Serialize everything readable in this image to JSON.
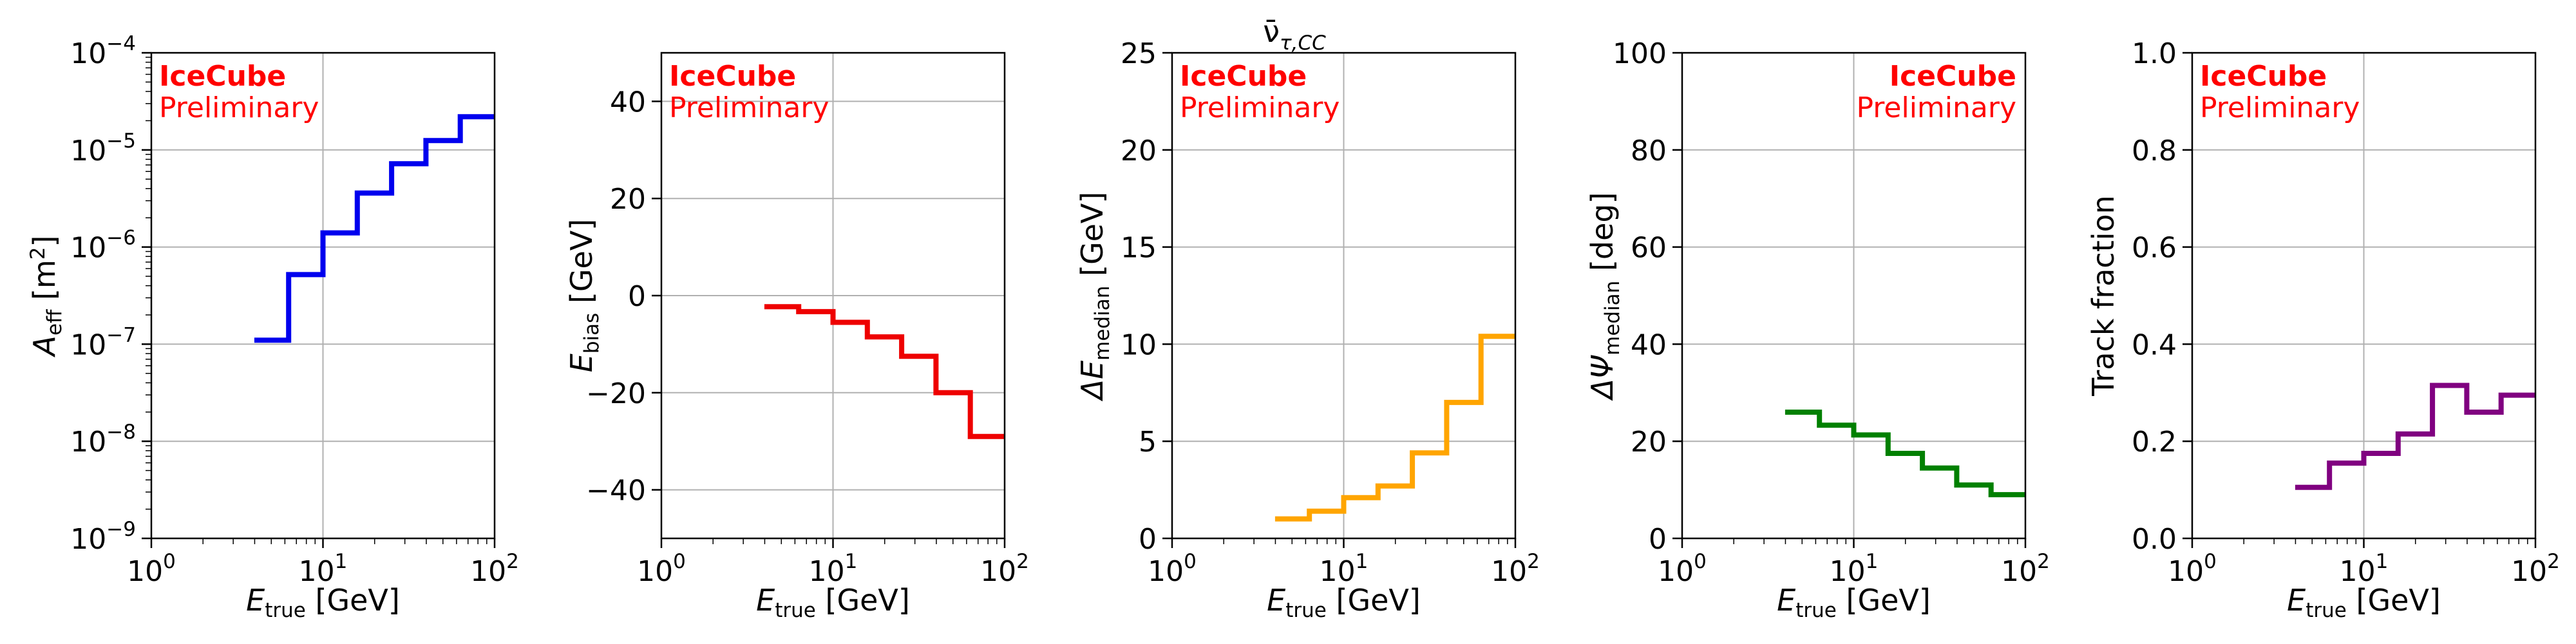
{
  "figure": {
    "suptitle": "ν̄τ,CC",
    "suptitle_main": "ν̄",
    "suptitle_sub": "τ,CC"
  },
  "watermark": {
    "line1": "IceCube",
    "line2": "Preliminary"
  },
  "chart_data": [
    {
      "id": "aeff",
      "type": "line",
      "drawstyle": "steps-post",
      "color": "#0000ee",
      "xscale": "log",
      "yscale": "log",
      "xlim": [
        1,
        100
      ],
      "ylim": [
        1e-09,
        0.0001
      ],
      "xlabel_main": "E",
      "xlabel_sub": "true",
      "xlabel_unit": " [GeV]",
      "ylabel_main": "A",
      "ylabel_sub": "eff",
      "ylabel_unit": " [m",
      "ylabel_sup": "2",
      "ylabel_close": "]",
      "xticks": [
        1,
        10,
        100
      ],
      "xtick_labels": [
        "10^0",
        "10^1",
        "10^2"
      ],
      "yticks": [
        1e-09,
        1e-08,
        1e-07,
        1e-06,
        1e-05,
        0.0001
      ],
      "ytick_labels": [
        "10^−9",
        "10^−8",
        "10^−7",
        "10^−6",
        "10^−5",
        "10^−4"
      ],
      "watermark_position": "top-left",
      "grid": true,
      "edges": [
        3.98,
        6.31,
        10.0,
        15.85,
        25.12,
        39.81,
        63.1,
        100.0
      ],
      "values": [
        1.1e-07,
        5.2e-07,
        1.4e-06,
        3.6e-06,
        7.2e-06,
        1.25e-05,
        2.2e-05
      ]
    },
    {
      "id": "ebias",
      "type": "line",
      "drawstyle": "steps-post",
      "color": "#ee0000",
      "xscale": "log",
      "yscale": "linear",
      "xlim": [
        1,
        100
      ],
      "ylim": [
        -50,
        50
      ],
      "xlabel_main": "E",
      "xlabel_sub": "true",
      "xlabel_unit": " [GeV]",
      "ylabel_main": "E",
      "ylabel_sub": "bias",
      "ylabel_unit": " [GeV]",
      "xticks": [
        1,
        10,
        100
      ],
      "xtick_labels": [
        "10^0",
        "10^1",
        "10^2"
      ],
      "yticks": [
        -40,
        -20,
        0,
        20,
        40
      ],
      "ytick_labels": [
        "−40",
        "−20",
        "0",
        "20",
        "40"
      ],
      "watermark_position": "top-left",
      "grid": true,
      "edges": [
        3.98,
        6.31,
        10.0,
        15.85,
        25.12,
        39.81,
        63.1,
        100.0
      ],
      "values": [
        -2.3,
        -3.3,
        -5.5,
        -8.5,
        -12.5,
        -20.0,
        -29.0
      ]
    },
    {
      "id": "dE",
      "type": "line",
      "drawstyle": "steps-post",
      "color": "#ffa500",
      "xscale": "log",
      "yscale": "linear",
      "xlim": [
        1,
        100
      ],
      "ylim": [
        0,
        25
      ],
      "xlabel_main": "E",
      "xlabel_sub": "true",
      "xlabel_unit": " [GeV]",
      "ylabel_main": "ΔE",
      "ylabel_sub": "median",
      "ylabel_unit": " [GeV]",
      "xticks": [
        1,
        10,
        100
      ],
      "xtick_labels": [
        "10^0",
        "10^1",
        "10^2"
      ],
      "yticks": [
        0,
        5,
        10,
        15,
        20,
        25
      ],
      "ytick_labels": [
        "0",
        "5",
        "10",
        "15",
        "20",
        "25"
      ],
      "watermark_position": "top-left",
      "grid": true,
      "edges": [
        3.98,
        6.31,
        10.0,
        15.85,
        25.12,
        39.81,
        63.1,
        100.0
      ],
      "values": [
        1.0,
        1.4,
        2.1,
        2.7,
        4.4,
        7.0,
        10.4
      ]
    },
    {
      "id": "dPsi",
      "type": "line",
      "drawstyle": "steps-post",
      "color": "#008000",
      "xscale": "log",
      "yscale": "linear",
      "xlim": [
        1,
        100
      ],
      "ylim": [
        0,
        100
      ],
      "xlabel_main": "E",
      "xlabel_sub": "true",
      "xlabel_unit": " [GeV]",
      "ylabel_main": "ΔΨ",
      "ylabel_sub": "median",
      "ylabel_unit": " [deg]",
      "xticks": [
        1,
        10,
        100
      ],
      "xtick_labels": [
        "10^0",
        "10^1",
        "10^2"
      ],
      "yticks": [
        0,
        20,
        40,
        60,
        80,
        100
      ],
      "ytick_labels": [
        "0",
        "20",
        "40",
        "60",
        "80",
        "100"
      ],
      "watermark_position": "top-right",
      "grid": true,
      "edges": [
        3.98,
        6.31,
        10.0,
        15.85,
        25.12,
        39.81,
        63.1,
        100.0
      ],
      "values": [
        26.0,
        23.3,
        21.3,
        17.5,
        14.5,
        11.0,
        9.0
      ]
    },
    {
      "id": "track",
      "type": "line",
      "drawstyle": "steps-post",
      "color": "#800080",
      "xscale": "log",
      "yscale": "linear",
      "xlim": [
        1,
        100
      ],
      "ylim": [
        0,
        1.0
      ],
      "xlabel_main": "E",
      "xlabel_sub": "true",
      "xlabel_unit": " [GeV]",
      "ylabel_main": "Track fraction",
      "ylabel_sub": "",
      "ylabel_unit": "",
      "xticks": [
        1,
        10,
        100
      ],
      "xtick_labels": [
        "10^0",
        "10^1",
        "10^2"
      ],
      "yticks": [
        0,
        0.2,
        0.4,
        0.6,
        0.8,
        1.0
      ],
      "ytick_labels": [
        "0.0",
        "0.2",
        "0.4",
        "0.6",
        "0.8",
        "1.0"
      ],
      "watermark_position": "top-left",
      "grid": true,
      "edges": [
        3.98,
        6.31,
        10.0,
        15.85,
        25.12,
        39.81,
        63.1,
        100.0
      ],
      "values": [
        0.105,
        0.155,
        0.175,
        0.215,
        0.315,
        0.26,
        0.295
      ]
    }
  ]
}
